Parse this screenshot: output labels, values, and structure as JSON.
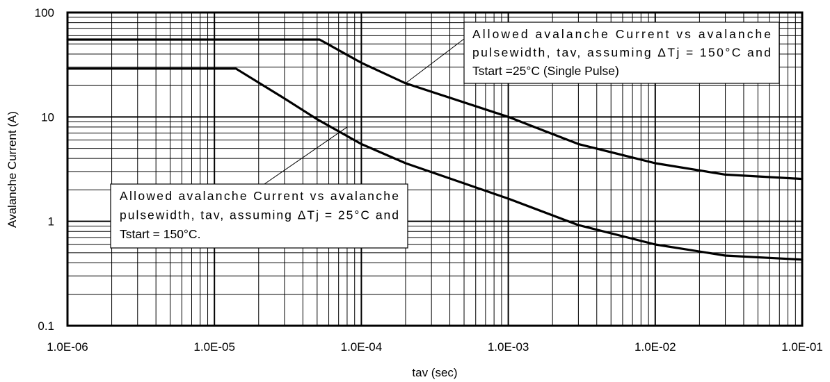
{
  "chart_data": {
    "type": "line",
    "xlabel": "tav (sec)",
    "ylabel": "Avalanche Current (A)",
    "xscale": "log",
    "yscale": "log",
    "xlim": [
      1e-06,
      0.1
    ],
    "ylim": [
      0.1,
      100
    ],
    "grid": true,
    "x_tick_labels": [
      "1.0E-06",
      "1.0E-05",
      "1.0E-04",
      "1.0E-03",
      "1.0E-02",
      "1.0E-01"
    ],
    "y_tick_labels": [
      "0.1",
      "1",
      "10",
      "100"
    ],
    "series": [
      {
        "x": [
          1e-06,
          5.2e-05,
          0.0001,
          0.0002,
          0.001,
          0.003,
          0.01,
          0.03,
          0.1
        ],
        "y": [
          55,
          55,
          33,
          21,
          10,
          5.5,
          3.6,
          2.8,
          2.55
        ]
      },
      {
        "x": [
          1e-06,
          1.4e-05,
          3e-05,
          5e-05,
          0.0001,
          0.0002,
          0.001,
          0.003,
          0.01,
          0.03,
          0.1
        ],
        "y": [
          29,
          29,
          15,
          9.5,
          5.5,
          3.6,
          1.65,
          0.92,
          0.6,
          0.47,
          0.43
        ]
      }
    ],
    "annotations": [
      {
        "lines": [
          "Allowed avalanche Current vs avalanche",
          "pulsewidth, tav, assuming ΔTj = 150°C and",
          "Tstart =25°C (Single Pulse)"
        ],
        "points_to": {
          "x": 0.0002,
          "y": 21
        }
      },
      {
        "lines": [
          "Allowed avalanche Current vs avalanche",
          "pulsewidth, tav, assuming ΔTj = 25°C and",
          "Tstart = 150°C."
        ],
        "points_to": {
          "x": 8e-05,
          "y": 8
        }
      }
    ]
  }
}
